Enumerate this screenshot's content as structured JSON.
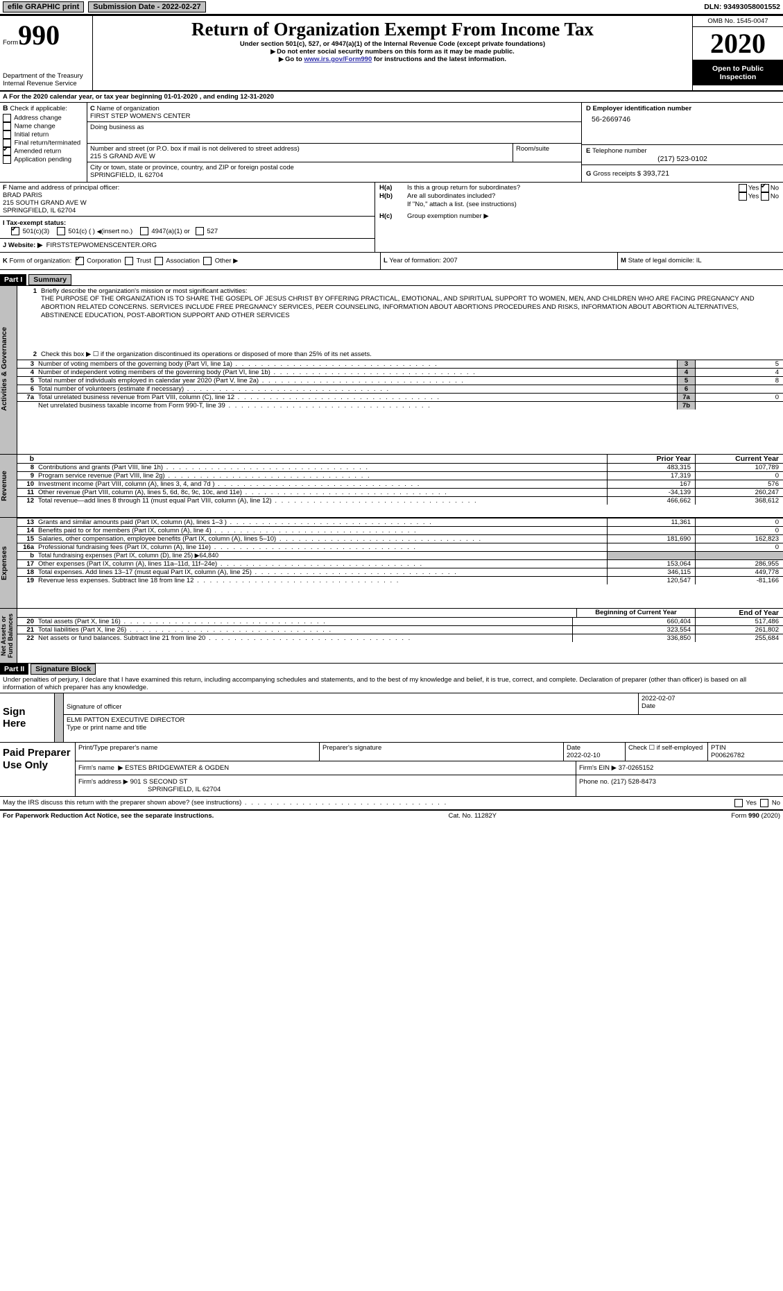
{
  "top": {
    "efile": "efile GRAPHIC print",
    "submission_label": "Submission Date - 2022-02-27",
    "dln_label": "DLN: 93493058001552"
  },
  "header": {
    "form_word": "Form",
    "form_num": "990",
    "title": "Return of Organization Exempt From Income Tax",
    "subtitle": "Under section 501(c), 527, or 4947(a)(1) of the Internal Revenue Code (except private foundations)",
    "warn": "Do not enter social security numbers on this form as it may be made public.",
    "goto_pre": "Go to ",
    "goto_link": "www.irs.gov/Form990",
    "goto_post": " for instructions and the latest information.",
    "omb": "OMB No. 1545-0047",
    "year": "2020",
    "open": "Open to Public Inspection",
    "dept": "Department of the Treasury",
    "irs": "Internal Revenue Service"
  },
  "A": {
    "label": "For the 2020 calendar year, or tax year beginning 01-01-2020   , and ending 12-31-2020"
  },
  "B": {
    "title": "Check if applicable:",
    "opts": [
      "Address change",
      "Name change",
      "Initial return",
      "Final return/terminated",
      "Amended return",
      "Application pending"
    ],
    "checked": [
      false,
      false,
      false,
      false,
      true,
      false
    ]
  },
  "C": {
    "name_label": "Name of organization",
    "name": "FIRST STEP WOMEN'S CENTER",
    "dba_label": "Doing business as",
    "addr_label": "Number and street (or P.O. box if mail is not delivered to street address)",
    "suite_label": "Room/suite",
    "addr": "215 S GRAND AVE W",
    "city_label": "City or town, state or province, country, and ZIP or foreign postal code",
    "city": "SPRINGFIELD, IL  62704"
  },
  "D": {
    "label": "Employer identification number",
    "val": "56-2669746"
  },
  "E": {
    "label": "Telephone number",
    "val": "(217) 523-0102"
  },
  "G": {
    "label": "Gross receipts $",
    "val": "393,721"
  },
  "F": {
    "label": "Name and address of principal officer:",
    "name": "BRAD PARIS",
    "addr1": "215 SOUTH GRAND AVE W",
    "addr2": "SPRINGFIELD, IL  62704"
  },
  "H": {
    "a_label": "Is this a group return for subordinates?",
    "b_label": "Are all subordinates included?",
    "b_note": "If \"No,\" attach a list. (see instructions)",
    "c_label": "Group exemption number",
    "yes": "Yes",
    "no": "No",
    "a_checked": "no"
  },
  "I": {
    "label": "Tax-exempt status:",
    "opts": [
      "501(c)(3)",
      "501(c) (  )",
      "(insert no.)",
      "4947(a)(1) or",
      "527"
    ],
    "checked": 0
  },
  "J": {
    "label": "Website:",
    "val": "FIRSTSTEPWOMENSCENTER.ORG"
  },
  "K": {
    "label": "Form of organization:",
    "opts": [
      "Corporation",
      "Trust",
      "Association",
      "Other"
    ],
    "checked": 0
  },
  "L": {
    "label": "Year of formation:",
    "val": "2007"
  },
  "M": {
    "label": "State of legal domicile:",
    "val": "IL"
  },
  "part1": {
    "hdr": "Part I",
    "title": "Summary",
    "sec1_title": "Activities & Governance",
    "l1_label": "Briefly describe the organization's mission or most significant activities:",
    "l1_text": "THE PURPOSE OF THE ORGANIZATION IS TO SHARE THE GOSEPL OF JESUS CHRIST BY OFFERING PRACTICAL, EMOTIONAL, AND SPIRITUAL SUPPORT TO WOMEN, MEN, AND CHILDREN WHO ARE FACING PREGNANCY AND ABORTION RELATED CONCERNS. SERVICES INCLUDE FREE PREGNANCY SERVICES, PEER COUNSELING, INFORMATION ABOUT ABORTIONS PROCEDURES AND RISKS, INFORMATION ABOUT ABORTION ALTERNATIVES, ABSTINENCE EDUCATION, POST-ABORTION SUPPORT AND OTHER SERVICES",
    "l2": "Check this box ▶ ☐ if the organization discontinued its operations or disposed of more than 25% of its net assets.",
    "rows_gov": [
      {
        "n": "3",
        "t": "Number of voting members of the governing body (Part VI, line 1a)",
        "c": "3",
        "v": "5"
      },
      {
        "n": "4",
        "t": "Number of independent voting members of the governing body (Part VI, line 1b)",
        "c": "4",
        "v": "4"
      },
      {
        "n": "5",
        "t": "Total number of individuals employed in calendar year 2020 (Part V, line 2a)",
        "c": "5",
        "v": "8"
      },
      {
        "n": "6",
        "t": "Total number of volunteers (estimate if necessary)",
        "c": "6",
        "v": ""
      },
      {
        "n": "7a",
        "t": "Total unrelated business revenue from Part VIII, column (C), line 12",
        "c": "7a",
        "v": "0"
      },
      {
        "n": "",
        "t": "Net unrelated business taxable income from Form 990-T, line 39",
        "c": "7b",
        "v": ""
      }
    ],
    "col_hdr_b": "",
    "col_prior": "Prior Year",
    "col_curr": "Current Year",
    "sec2_title": "Revenue",
    "rows_rev": [
      {
        "n": "8",
        "t": "Contributions and grants (Part VIII, line 1h)",
        "p": "483,315",
        "c": "107,789"
      },
      {
        "n": "9",
        "t": "Program service revenue (Part VIII, line 2g)",
        "p": "17,319",
        "c": "0"
      },
      {
        "n": "10",
        "t": "Investment income (Part VIII, column (A), lines 3, 4, and 7d )",
        "p": "167",
        "c": "576"
      },
      {
        "n": "11",
        "t": "Other revenue (Part VIII, column (A), lines 5, 6d, 8c, 9c, 10c, and 11e)",
        "p": "-34,139",
        "c": "260,247"
      },
      {
        "n": "12",
        "t": "Total revenue—add lines 8 through 11 (must equal Part VIII, column (A), line 12)",
        "p": "466,662",
        "c": "368,612"
      }
    ],
    "sec3_title": "Expenses",
    "rows_exp": [
      {
        "n": "13",
        "t": "Grants and similar amounts paid (Part IX, column (A), lines 1–3 )",
        "p": "11,361",
        "c": "0"
      },
      {
        "n": "14",
        "t": "Benefits paid to or for members (Part IX, column (A), line 4)",
        "p": "",
        "c": "0"
      },
      {
        "n": "15",
        "t": "Salaries, other compensation, employee benefits (Part IX, column (A), lines 5–10)",
        "p": "181,690",
        "c": "162,823"
      },
      {
        "n": "16a",
        "t": "Professional fundraising fees (Part IX, column (A), line 11e)",
        "p": "",
        "c": "0"
      },
      {
        "n": "b",
        "t": "Total fundraising expenses (Part IX, column (D), line 25) ▶64,840",
        "p": "grey",
        "c": "grey"
      },
      {
        "n": "17",
        "t": "Other expenses (Part IX, column (A), lines 11a–11d, 11f–24e)",
        "p": "153,064",
        "c": "286,955"
      },
      {
        "n": "18",
        "t": "Total expenses. Add lines 13–17 (must equal Part IX, column (A), line 25)",
        "p": "346,115",
        "c": "449,778"
      },
      {
        "n": "19",
        "t": "Revenue less expenses. Subtract line 18 from line 12",
        "p": "120,547",
        "c": "-81,166"
      }
    ],
    "sec4_title": "Net Assets or Fund Balances",
    "col_begin": "Beginning of Current Year",
    "col_end": "End of Year",
    "rows_na": [
      {
        "n": "20",
        "t": "Total assets (Part X, line 16)",
        "p": "660,404",
        "c": "517,486"
      },
      {
        "n": "21",
        "t": "Total liabilities (Part X, line 26)",
        "p": "323,554",
        "c": "261,802"
      },
      {
        "n": "22",
        "t": "Net assets or fund balances. Subtract line 21 from line 20",
        "p": "336,850",
        "c": "255,684"
      }
    ]
  },
  "part2": {
    "hdr": "Part II",
    "title": "Signature Block",
    "decl": "Under penalties of perjury, I declare that I have examined this return, including accompanying schedules and statements, and to the best of my knowledge and belief, it is true, correct, and complete. Declaration of preparer (other than officer) is based on all information of which preparer has any knowledge.",
    "sign_here": "Sign Here",
    "sig_officer": "Signature of officer",
    "date_lbl": "Date",
    "sig_date": "2022-02-07",
    "typed": "ELMI PATTON  EXECUTIVE DIRECTOR",
    "typed_lbl": "Type or print name and title",
    "paid": "Paid Preparer Use Only",
    "prep_name_lbl": "Print/Type preparer's name",
    "prep_sig_lbl": "Preparer's signature",
    "prep_date": "2022-02-10",
    "self_emp": "Check ☐ if self-employed",
    "ptin_lbl": "PTIN",
    "ptin": "P00626782",
    "firm_name_lbl": "Firm's name",
    "firm_name": "ESTES BRIDGEWATER & OGDEN",
    "firm_ein_lbl": "Firm's EIN",
    "firm_ein": "37-0265152",
    "firm_addr_lbl": "Firm's address",
    "firm_addr1": "901 S SECOND ST",
    "firm_addr2": "SPRINGFIELD, IL  62704",
    "phone_lbl": "Phone no.",
    "phone": "(217) 528-8473",
    "discuss": "May the IRS discuss this return with the preparer shown above? (see instructions)"
  },
  "footer": {
    "pra": "For Paperwork Reduction Act Notice, see the separate instructions.",
    "cat": "Cat. No. 11282Y",
    "form": "Form 990 (2020)"
  }
}
